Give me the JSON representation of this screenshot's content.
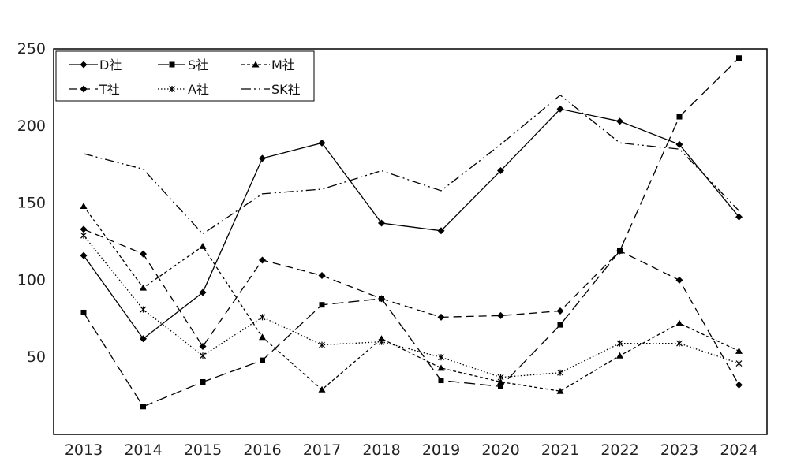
{
  "chart_data": {
    "type": "line",
    "title": "",
    "xlabel": "",
    "ylabel": "",
    "x": [
      "2013",
      "2014",
      "2015",
      "2016",
      "2017",
      "2018",
      "2019",
      "2020",
      "2021",
      "2022",
      "2023",
      "2024"
    ],
    "ylim": [
      0,
      250
    ],
    "yticks": [
      50,
      100,
      150,
      200,
      250
    ],
    "grid": false,
    "legend_position": "top-left",
    "series": [
      {
        "name": "D社",
        "marker": "diamond",
        "dash": "solid",
        "values": [
          116,
          62,
          92,
          179,
          189,
          137,
          132,
          171,
          211,
          203,
          188,
          141
        ]
      },
      {
        "name": "S社",
        "marker": "square",
        "dash": "long-dash",
        "values": [
          79,
          18,
          34,
          48,
          84,
          88,
          35,
          31,
          71,
          119,
          206,
          244
        ]
      },
      {
        "name": "M社",
        "marker": "triangle",
        "dash": "short-dash",
        "values": [
          148,
          95,
          122,
          63,
          29,
          62,
          43,
          34,
          28,
          51,
          72,
          54
        ]
      },
      {
        "name": "T社",
        "marker": "diamond",
        "dash": "dash",
        "values": [
          133,
          117,
          57,
          113,
          103,
          88,
          76,
          77,
          80,
          119,
          100,
          32
        ]
      },
      {
        "name": "A社",
        "marker": "star",
        "dash": "dotted",
        "values": [
          129,
          81,
          51,
          76,
          58,
          60,
          50,
          37,
          40,
          59,
          59,
          46
        ]
      },
      {
        "name": "SK社",
        "marker": "none",
        "dash": "dash-dot-dot",
        "values": [
          182,
          172,
          130,
          156,
          159,
          171,
          158,
          188,
          220,
          189,
          185,
          145
        ]
      }
    ]
  }
}
